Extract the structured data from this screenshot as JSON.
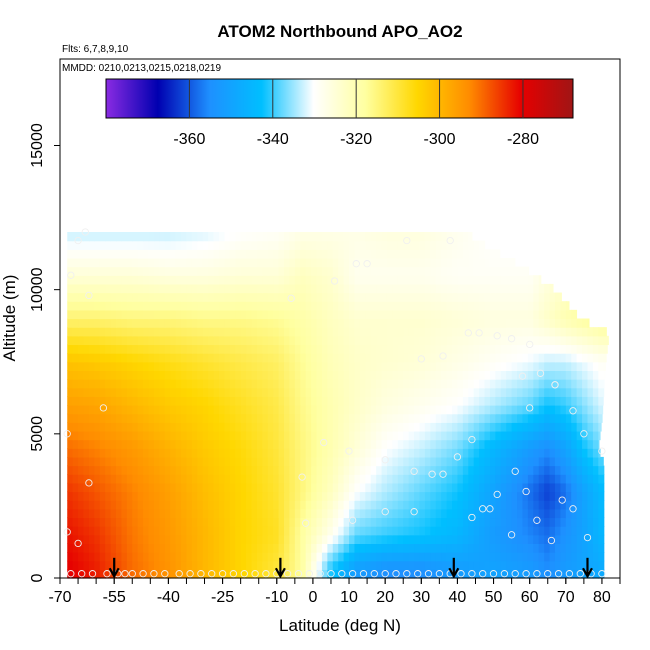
{
  "chart_data": {
    "type": "heatmap",
    "title": "ATOM2 Northbound APO_AO2",
    "annotations": [
      "Flts: 6,7,8,9,10",
      "MMDD: 0210,0213,0215,0218,0219"
    ],
    "xlabel": "Latitude (deg N)",
    "ylabel": "Altitude (m)",
    "xlim": [
      -70,
      85
    ],
    "ylim": [
      0,
      18000
    ],
    "x_ticks": [
      "-70",
      "-55",
      "-40",
      "-25",
      "-10",
      "0",
      "10",
      "20",
      "30",
      "40",
      "50",
      "60",
      "70",
      "80"
    ],
    "x_tick_values": [
      -70,
      -55,
      -40,
      -25,
      -10,
      0,
      10,
      20,
      30,
      40,
      50,
      60,
      70,
      80
    ],
    "y_ticks": [
      "0",
      "5000",
      "10000",
      "15000"
    ],
    "y_tick_values": [
      0,
      5000,
      10000,
      15000
    ],
    "colorbar": {
      "range": [
        -380,
        -268
      ],
      "ticks": [
        "-360",
        "-340",
        "-320",
        "-300",
        "-280"
      ],
      "tick_values": [
        -360,
        -340,
        -320,
        -300,
        -280
      ],
      "placement": "top",
      "colors": [
        "#8a2be2",
        "#0000b0",
        "#1e90ff",
        "#00bfff",
        "#ffffff",
        "#ffffa0",
        "#ffd700",
        "#ff8c00",
        "#e60000",
        "#a01515"
      ]
    },
    "value_grid": {
      "latitudes": [
        -68,
        -60,
        -50,
        -40,
        -30,
        -20,
        -10,
        -3,
        5,
        12,
        20,
        30,
        40,
        50,
        60,
        65,
        70,
        75,
        80
      ],
      "altitudes": [
        250,
        1500,
        3000,
        4500,
        6000,
        7500,
        9000,
        10500,
        12000
      ],
      "values": [
        [
          -280,
          -283,
          -290,
          -294,
          -300,
          -305,
          -310,
          -318,
          -342,
          -352,
          -355,
          -355,
          -352,
          -350,
          -352,
          -355,
          -352,
          -350,
          -348
        ],
        [
          -282,
          -285,
          -291,
          -295,
          -300,
          -305,
          -308,
          -318,
          -328,
          -338,
          -340,
          -342,
          -345,
          -352,
          -356,
          -358,
          -354,
          -350,
          -345
        ],
        [
          -285,
          -288,
          -292,
          -296,
          -301,
          -305,
          -309,
          -315,
          -322,
          -330,
          -334,
          -338,
          -342,
          -350,
          -358,
          -362,
          -358,
          -350,
          -344
        ],
        [
          -290,
          -292,
          -295,
          -299,
          -303,
          -306,
          -310,
          -315,
          -320,
          -325,
          -330,
          -333,
          -337,
          -345,
          -352,
          -355,
          -350,
          -342,
          -337
        ],
        [
          -296,
          -297,
          -300,
          -303,
          -305,
          -308,
          -311,
          -316,
          -320,
          -323,
          -326,
          -328,
          -330,
          -334,
          -338,
          -342,
          -340,
          -336,
          -332
        ],
        [
          -302,
          -303,
          -305,
          -307,
          -309,
          -311,
          -313,
          -317,
          -321,
          -323,
          -324,
          -325,
          -327,
          -329,
          -331,
          -333,
          -333,
          -331,
          -329
        ],
        [
          -314,
          -314,
          -315,
          -315,
          -316,
          -316,
          -317,
          -319,
          -322,
          -324,
          -324,
          -324,
          -325,
          -326,
          -326,
          -323,
          -320,
          -318,
          -316
        ],
        [
          -325,
          -325,
          -325,
          -326,
          -326,
          -325,
          -325,
          -322,
          -324,
          -328,
          -328,
          -328,
          -329,
          -329,
          -329,
          -326,
          -324,
          -322,
          -320
        ],
        [
          -333,
          -333,
          -333,
          -333,
          -332,
          -330,
          -329,
          -327,
          -327,
          -327,
          -326,
          -326,
          -328,
          -330,
          -330,
          -330,
          -330,
          -330,
          -330
        ]
      ]
    },
    "coverage": {
      "lat_min": -68,
      "lat_max_by_altitude": [
        [
          0,
          80.5
        ],
        [
          4000,
          80.5
        ],
        [
          4500,
          79
        ],
        [
          5500,
          80
        ],
        [
          7500,
          81
        ],
        [
          8500,
          82
        ],
        [
          9000,
          74
        ],
        [
          10000,
          67
        ],
        [
          10800,
          58
        ],
        [
          11800,
          44
        ],
        [
          12000,
          44
        ]
      ],
      "alt_max": 12000
    },
    "samples": [
      [
        -67,
        150
      ],
      [
        -64,
        150
      ],
      [
        -61,
        150
      ],
      [
        -57,
        150
      ],
      [
        -54,
        150
      ],
      [
        -52,
        150
      ],
      [
        -50,
        150
      ],
      [
        -47,
        150
      ],
      [
        -44,
        150
      ],
      [
        -41,
        150
      ],
      [
        -37,
        150
      ],
      [
        -34,
        150
      ],
      [
        -31,
        150
      ],
      [
        -28,
        150
      ],
      [
        -25,
        150
      ],
      [
        -22,
        150
      ],
      [
        -19,
        150
      ],
      [
        -16,
        150
      ],
      [
        -13,
        150
      ],
      [
        -10,
        150
      ],
      [
        -7,
        150
      ],
      [
        -4,
        150
      ],
      [
        -1,
        150
      ],
      [
        2,
        150
      ],
      [
        5,
        150
      ],
      [
        8,
        150
      ],
      [
        11,
        150
      ],
      [
        14,
        150
      ],
      [
        17,
        150
      ],
      [
        20,
        150
      ],
      [
        23,
        150
      ],
      [
        26,
        150
      ],
      [
        29,
        150
      ],
      [
        32,
        150
      ],
      [
        35,
        150
      ],
      [
        38,
        150
      ],
      [
        41,
        150
      ],
      [
        44,
        150
      ],
      [
        47,
        150
      ],
      [
        50,
        150
      ],
      [
        53,
        150
      ],
      [
        56,
        150
      ],
      [
        59,
        150
      ],
      [
        62,
        150
      ],
      [
        65,
        150
      ],
      [
        68,
        150
      ],
      [
        71,
        150
      ],
      [
        74,
        150
      ],
      [
        77,
        150
      ],
      [
        80,
        150
      ],
      [
        -68,
        1600
      ],
      [
        -65,
        1200
      ],
      [
        -62,
        3300
      ],
      [
        -58,
        5900
      ],
      [
        -68,
        5000
      ],
      [
        -67,
        10500
      ],
      [
        -65,
        11700
      ],
      [
        -63,
        12000
      ],
      [
        38,
        11700
      ],
      [
        26,
        11700
      ],
      [
        15,
        10900
      ],
      [
        12,
        10900
      ],
      [
        6,
        10300
      ],
      [
        -6,
        9700
      ],
      [
        -62,
        9800
      ],
      [
        43,
        8500
      ],
      [
        46,
        8500
      ],
      [
        51,
        8400
      ],
      [
        55,
        8300
      ],
      [
        60,
        8100
      ],
      [
        67,
        6700
      ],
      [
        67,
        6700
      ],
      [
        30,
        7600
      ],
      [
        36,
        7700
      ],
      [
        58,
        7000
      ],
      [
        63,
        7100
      ],
      [
        60,
        5900
      ],
      [
        72,
        5800
      ],
      [
        75,
        5000
      ],
      [
        80,
        4400
      ],
      [
        44,
        4800
      ],
      [
        40,
        4200
      ],
      [
        36,
        3600
      ],
      [
        33,
        3600
      ],
      [
        28,
        3700
      ],
      [
        20,
        4100
      ],
      [
        10,
        4400
      ],
      [
        3,
        4700
      ],
      [
        -3,
        3500
      ],
      [
        56,
        3700
      ],
      [
        59,
        3000
      ],
      [
        51,
        2900
      ],
      [
        47,
        2400
      ],
      [
        44,
        2100
      ],
      [
        28,
        2300
      ],
      [
        20,
        2300
      ],
      [
        11,
        2000
      ],
      [
        -2,
        1900
      ],
      [
        72,
        2400
      ],
      [
        76,
        1400
      ],
      [
        66,
        1300
      ],
      [
        62,
        2000
      ],
      [
        55,
        1500
      ],
      [
        49,
        2400
      ],
      [
        69,
        2700
      ]
    ],
    "arrows_at_latitude": [
      -55,
      -9,
      39,
      76
    ]
  }
}
